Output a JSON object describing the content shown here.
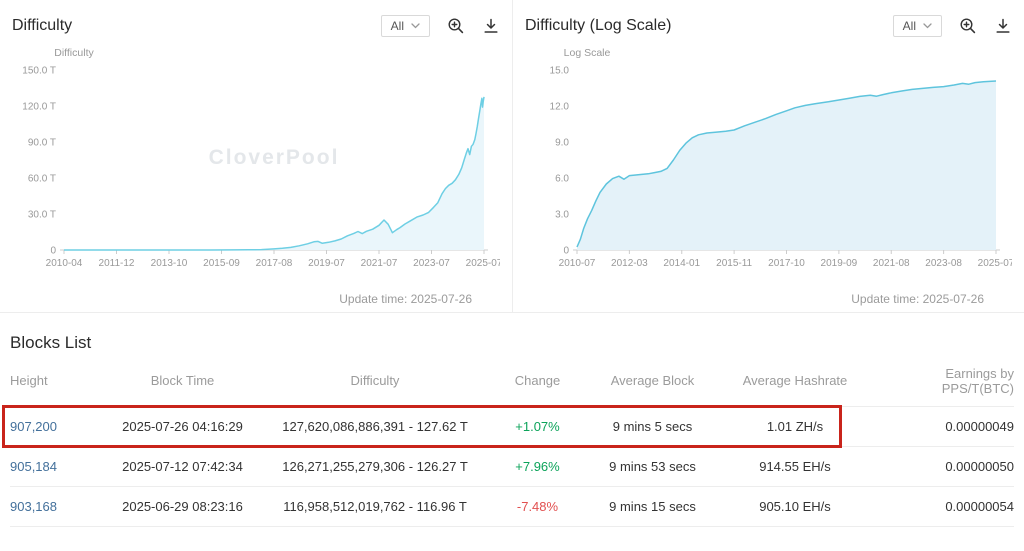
{
  "watermark": "CloverPool",
  "colors": {
    "link": "#43709b",
    "up": "#0ca35a",
    "down": "#e25050",
    "highlight": "#c9241b",
    "axis_text": "#999999",
    "watermark_text": "#e4e7ea"
  },
  "panels": [
    {
      "title": "Difficulty",
      "range_selector": "All",
      "update_time": "Update time: 2025-07-26"
    },
    {
      "title": "Difficulty (Log Scale)",
      "range_selector": "All",
      "update_time": "Update time: 2025-07-26"
    }
  ],
  "chart_data": [
    {
      "type": "line",
      "title": "Difficulty",
      "ylabel": "Difficulty",
      "ylim": [
        0,
        150
      ],
      "y_ticks": [
        "0",
        "30.0 T",
        "60.0 T",
        "90.0 T",
        "120.0 T",
        "150.0 T"
      ],
      "y_tick_values": [
        0,
        30,
        60,
        90,
        120,
        150
      ],
      "x_ticks": [
        "2010-04",
        "2011-12",
        "2013-10",
        "2015-09",
        "2017-08",
        "2019-07",
        "2021-07",
        "2023-07",
        "2025-07"
      ],
      "line_color": "#6ecfe4",
      "fill_color": "#eaf6fb",
      "grid": false,
      "legend": "none",
      "points": [
        [
          0.0,
          0
        ],
        [
          0.05,
          0
        ],
        [
          0.1,
          0
        ],
        [
          0.15,
          0
        ],
        [
          0.2,
          0
        ],
        [
          0.25,
          0
        ],
        [
          0.3,
          0.005
        ],
        [
          0.35,
          0.02
        ],
        [
          0.4,
          0.06
        ],
        [
          0.44,
          0.15
        ],
        [
          0.47,
          0.35
        ],
        [
          0.5,
          0.9
        ],
        [
          0.52,
          1.4
        ],
        [
          0.54,
          2.2
        ],
        [
          0.56,
          3.5
        ],
        [
          0.58,
          5.2
        ],
        [
          0.595,
          6.8
        ],
        [
          0.605,
          7.2
        ],
        [
          0.615,
          5.6
        ],
        [
          0.63,
          6.4
        ],
        [
          0.645,
          7.6
        ],
        [
          0.66,
          9.2
        ],
        [
          0.675,
          11.8
        ],
        [
          0.69,
          13.8
        ],
        [
          0.7,
          15.4
        ],
        [
          0.71,
          13.7
        ],
        [
          0.72,
          15.6
        ],
        [
          0.735,
          17.3
        ],
        [
          0.75,
          20.6
        ],
        [
          0.762,
          25.0
        ],
        [
          0.772,
          21.4
        ],
        [
          0.782,
          14.4
        ],
        [
          0.792,
          16.9
        ],
        [
          0.8,
          18.7
        ],
        [
          0.812,
          21.7
        ],
        [
          0.825,
          24.3
        ],
        [
          0.84,
          27.4
        ],
        [
          0.855,
          29.2
        ],
        [
          0.868,
          31.3
        ],
        [
          0.88,
          35.6
        ],
        [
          0.89,
          39.4
        ],
        [
          0.9,
          46.8
        ],
        [
          0.908,
          51.2
        ],
        [
          0.916,
          53.9
        ],
        [
          0.924,
          55.6
        ],
        [
          0.932,
          58.5
        ],
        [
          0.94,
          63.0
        ],
        [
          0.947,
          68.5
        ],
        [
          0.953,
          75.5
        ],
        [
          0.958,
          81.0
        ],
        [
          0.962,
          84.4
        ],
        [
          0.966,
          79.5
        ],
        [
          0.97,
          86.4
        ],
        [
          0.974,
          88.1
        ],
        [
          0.978,
          92.0
        ],
        [
          0.981,
          97.0
        ],
        [
          0.984,
          103.0
        ],
        [
          0.987,
          109.5
        ],
        [
          0.99,
          116.0
        ],
        [
          0.9925,
          121.9
        ],
        [
          0.995,
          126.4
        ],
        [
          0.9965,
          119.1
        ],
        [
          0.998,
          123.6
        ],
        [
          1.0,
          127.6
        ]
      ]
    },
    {
      "type": "line",
      "title": "Difficulty (Log Scale)",
      "ylabel": "Log Scale",
      "ylim": [
        0,
        15
      ],
      "y_ticks": [
        "0",
        "3.0",
        "6.0",
        "9.0",
        "12.0",
        "15.0"
      ],
      "y_tick_values": [
        0,
        3,
        6,
        9,
        12,
        15
      ],
      "x_ticks": [
        "2010-07",
        "2012-03",
        "2014-01",
        "2015-11",
        "2017-10",
        "2019-09",
        "2021-08",
        "2023-08",
        "2025-07"
      ],
      "line_color": "#5ec4dd",
      "fill_color": "#e4f2f9",
      "grid": false,
      "legend": "none",
      "points": [
        [
          0.0,
          0.25
        ],
        [
          0.008,
          0.9
        ],
        [
          0.016,
          1.8
        ],
        [
          0.025,
          2.6
        ],
        [
          0.035,
          3.3
        ],
        [
          0.045,
          4.1
        ],
        [
          0.055,
          4.8
        ],
        [
          0.07,
          5.5
        ],
        [
          0.085,
          5.95
        ],
        [
          0.1,
          6.15
        ],
        [
          0.112,
          5.9
        ],
        [
          0.125,
          6.2
        ],
        [
          0.14,
          6.25
        ],
        [
          0.155,
          6.3
        ],
        [
          0.17,
          6.35
        ],
        [
          0.185,
          6.45
        ],
        [
          0.2,
          6.55
        ],
        [
          0.215,
          6.8
        ],
        [
          0.23,
          7.5
        ],
        [
          0.245,
          8.3
        ],
        [
          0.26,
          8.9
        ],
        [
          0.275,
          9.35
        ],
        [
          0.29,
          9.6
        ],
        [
          0.31,
          9.75
        ],
        [
          0.33,
          9.82
        ],
        [
          0.355,
          9.9
        ],
        [
          0.375,
          10.0
        ],
        [
          0.4,
          10.35
        ],
        [
          0.425,
          10.65
        ],
        [
          0.45,
          10.95
        ],
        [
          0.475,
          11.3
        ],
        [
          0.5,
          11.6
        ],
        [
          0.52,
          11.85
        ],
        [
          0.545,
          12.05
        ],
        [
          0.57,
          12.2
        ],
        [
          0.6,
          12.35
        ],
        [
          0.625,
          12.5
        ],
        [
          0.65,
          12.65
        ],
        [
          0.675,
          12.8
        ],
        [
          0.7,
          12.9
        ],
        [
          0.715,
          12.82
        ],
        [
          0.73,
          12.95
        ],
        [
          0.75,
          13.1
        ],
        [
          0.775,
          13.25
        ],
        [
          0.8,
          13.38
        ],
        [
          0.825,
          13.47
        ],
        [
          0.85,
          13.55
        ],
        [
          0.875,
          13.62
        ],
        [
          0.9,
          13.75
        ],
        [
          0.92,
          13.88
        ],
        [
          0.935,
          13.82
        ],
        [
          0.95,
          13.95
        ],
        [
          0.97,
          14.02
        ],
        [
          1.0,
          14.08
        ]
      ]
    }
  ],
  "blocks": {
    "title": "Blocks List",
    "columns": [
      "Height",
      "Block Time",
      "Difficulty",
      "Change",
      "Average Block",
      "Average Hashrate",
      "Earnings by PPS/T(BTC)"
    ],
    "rows": [
      {
        "height": "907,200",
        "block_time": "2025-07-26 04:16:29",
        "difficulty": "127,620,086,886,391 - 127.62 T",
        "change": "+1.07%",
        "change_dir": "up",
        "avg_block": "9 mins 5 secs",
        "avg_hashrate": "1.01 ZH/s",
        "earnings": "0.00000049",
        "highlighted": true
      },
      {
        "height": "905,184",
        "block_time": "2025-07-12 07:42:34",
        "difficulty": "126,271,255,279,306 - 126.27 T",
        "change": "+7.96%",
        "change_dir": "up",
        "avg_block": "9 mins 53 secs",
        "avg_hashrate": "914.55 EH/s",
        "earnings": "0.00000050",
        "highlighted": false
      },
      {
        "height": "903,168",
        "block_time": "2025-06-29 08:23:16",
        "difficulty": "116,958,512,019,762 - 116.96 T",
        "change": "-7.48%",
        "change_dir": "down",
        "avg_block": "9 mins 15 secs",
        "avg_hashrate": "905.10 EH/s",
        "earnings": "0.00000054",
        "highlighted": false
      }
    ]
  }
}
